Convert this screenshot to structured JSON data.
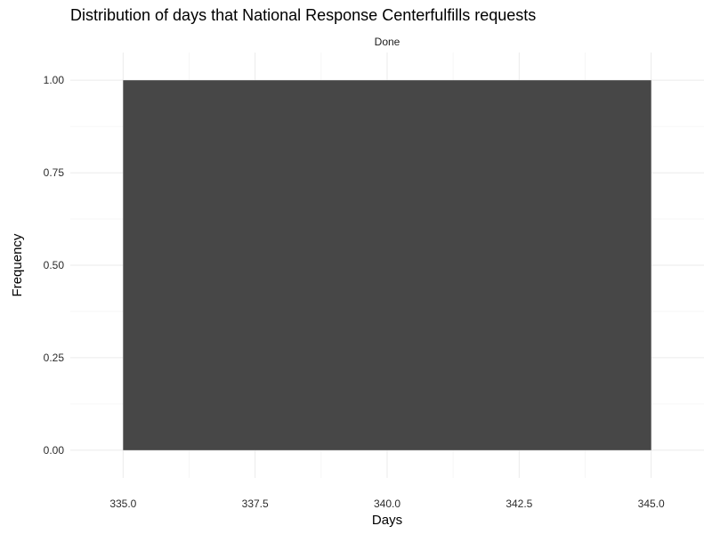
{
  "chart_data": {
    "type": "bar",
    "title": "Distribution of days that National Response Centerfulfills requests",
    "facet": "Done",
    "xlabel": "Days",
    "ylabel": "Frequency",
    "xlim": [
      334.0,
      346.0
    ],
    "ylim": [
      -0.075,
      1.075
    ],
    "x_ticks": [
      "335.0",
      "337.5",
      "340.0",
      "342.5",
      "345.0"
    ],
    "x_tick_values": [
      335.0,
      337.5,
      340.0,
      342.5,
      345.0
    ],
    "x_minor_values": [
      336.25,
      338.75,
      341.25,
      343.75
    ],
    "y_ticks": [
      "0.00",
      "0.25",
      "0.50",
      "0.75",
      "1.00"
    ],
    "y_tick_values": [
      0.0,
      0.25,
      0.5,
      0.75,
      1.0
    ],
    "y_minor_values": [
      0.125,
      0.375,
      0.625,
      0.875
    ],
    "bins": [
      {
        "x_start": 335.0,
        "x_end": 345.0,
        "value": 1.0
      }
    ],
    "grid": true,
    "bar_color": "#474747"
  }
}
